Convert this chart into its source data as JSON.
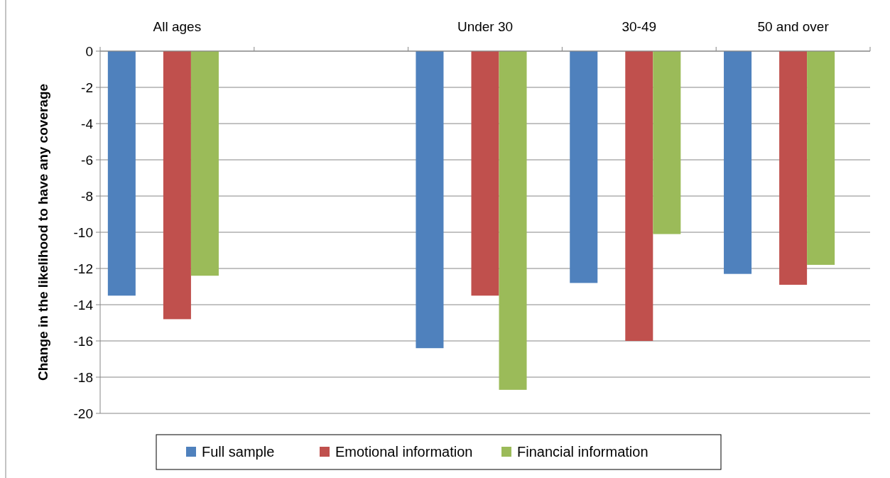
{
  "chart_data": {
    "type": "bar",
    "categories": [
      "All ages",
      null,
      "Under 30",
      "30-49",
      "50 and over"
    ],
    "ylabel": "Change in the likelihood to have any coverage",
    "series": [
      {
        "name": "Full sample",
        "color": "#4f81bd",
        "values": [
          -13.5,
          null,
          -16.4,
          -12.8,
          -12.3
        ]
      },
      {
        "name": "Emotional information",
        "color": "#c0504d",
        "values": [
          -14.8,
          null,
          -13.5,
          -16.0,
          -12.9
        ]
      },
      {
        "name": "Financial information",
        "color": "#9bbb59",
        "values": [
          -12.4,
          null,
          -18.7,
          -10.1,
          -11.8
        ]
      }
    ],
    "ylim": [
      -20,
      0
    ],
    "yticks": [
      0,
      -2,
      -4,
      -6,
      -8,
      -10,
      -12,
      -14,
      -16,
      -18,
      -20
    ],
    "grid": "y",
    "legend": "bottom"
  }
}
